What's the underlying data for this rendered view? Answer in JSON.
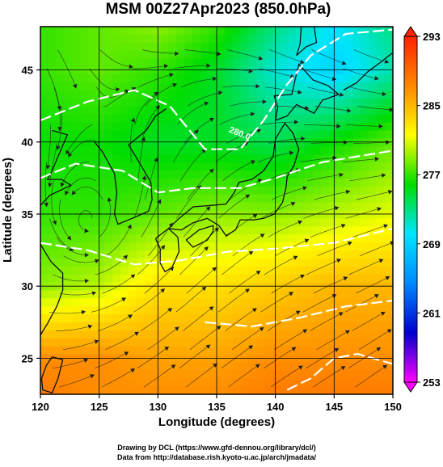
{
  "chart_data": {
    "type": "heatmap",
    "title": "MSM 00Z27Apr2023 (850.0hPa)",
    "xlabel": "Longitude (degrees)",
    "ylabel": "Latitude  (degrees)",
    "xlim": [
      120,
      150
    ],
    "ylim": [
      22.5,
      48
    ],
    "x_ticks": [
      120,
      125,
      130,
      135,
      140,
      145,
      150
    ],
    "y_ticks": [
      25,
      30,
      35,
      40,
      45
    ],
    "x_tick_labels": [
      "120",
      "125",
      "130",
      "135",
      "140",
      "145",
      "150"
    ],
    "y_tick_labels": [
      "25",
      "30",
      "35",
      "40",
      "45"
    ],
    "grid": true,
    "colorbar": {
      "position": "right",
      "min": 253,
      "max": 293,
      "ticks": [
        253,
        261,
        269,
        277,
        285,
        293
      ],
      "tick_labels": [
        "253",
        "261",
        "269",
        "277",
        "285",
        "293"
      ],
      "colors": [
        "#ff00ff",
        "#0000cc",
        "#0088ff",
        "#00e5ff",
        "#00dd00",
        "#ffff00",
        "#ff8800",
        "#ff2200"
      ]
    },
    "temperature_field_K": {
      "lon": [
        120,
        125,
        130,
        135,
        140,
        145,
        150
      ],
      "lat": [
        48,
        45,
        40,
        35,
        30,
        25,
        22.5
      ],
      "values": [
        [
          277,
          278,
          279,
          277,
          273,
          270,
          273
        ],
        [
          277,
          278,
          277,
          275,
          271,
          269,
          272
        ],
        [
          276,
          276,
          275,
          275,
          274,
          276,
          278
        ],
        [
          277,
          277,
          278,
          279,
          279,
          280,
          281
        ],
        [
          279,
          280,
          283,
          283,
          284,
          285,
          285
        ],
        [
          287,
          287,
          286,
          286,
          287,
          287,
          287
        ],
        [
          288,
          287,
          287,
          287,
          288,
          288,
          288
        ]
      ]
    },
    "contour_label": "280.0",
    "footer": [
      "Drawing by DCL (https://www.gfd-dennou.org/library/dcl/)",
      "Data from http://database.rish.kyoto-u.ac.jp/arch/jmadata/"
    ]
  }
}
